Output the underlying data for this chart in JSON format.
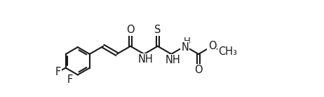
{
  "background_color": "#ffffff",
  "line_color": "#1a1a1a",
  "line_width": 1.5,
  "font_size": 10.5,
  "figsize": [
    4.62,
    1.38
  ],
  "dpi": 100,
  "xlim": [
    -1.0,
    12.5
  ],
  "ylim": [
    -2.2,
    2.8
  ]
}
